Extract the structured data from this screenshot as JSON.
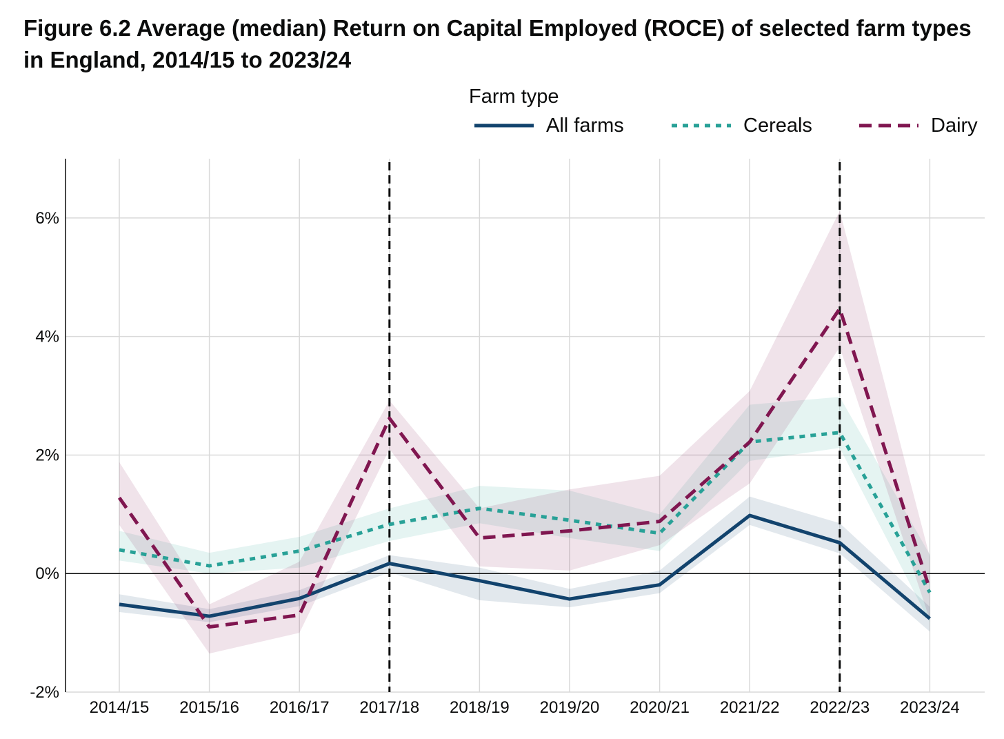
{
  "chart_data": {
    "type": "line",
    "title": "Figure 6.2 Average (median) Return on Capital Employed (ROCE) of selected farm types in England, 2014/15 to 2023/24",
    "legend_title": "Farm type",
    "legend_position": "top-right",
    "grid": true,
    "categories": [
      "2014/15",
      "2015/16",
      "2016/17",
      "2017/18",
      "2018/19",
      "2019/20",
      "2020/21",
      "2021/22",
      "2022/23",
      "2023/24"
    ],
    "ylim": [
      -2,
      7
    ],
    "yticks": [
      -2,
      0,
      2,
      4,
      6
    ],
    "ytick_labels": [
      "-2%",
      "0%",
      "2%",
      "4%",
      "6%"
    ],
    "vertical_dashed_markers": [
      "2017/18",
      "2022/23"
    ],
    "series": [
      {
        "name": "All farms",
        "color": "#12436d",
        "style": "solid",
        "values": [
          -0.52,
          -0.72,
          -0.42,
          0.17,
          -0.12,
          -0.43,
          -0.19,
          0.98,
          0.52,
          -0.76
        ],
        "ci_lower": [
          -0.65,
          -0.82,
          -0.55,
          0.02,
          -0.45,
          -0.57,
          -0.33,
          0.82,
          0.34,
          -0.98
        ],
        "ci_upper": [
          -0.35,
          -0.6,
          -0.28,
          0.31,
          0.1,
          -0.26,
          0.05,
          1.3,
          0.85,
          -0.56
        ]
      },
      {
        "name": "Cereals",
        "color": "#28a197",
        "style": "dotted",
        "values": [
          0.4,
          0.13,
          0.38,
          0.83,
          1.1,
          0.9,
          0.68,
          2.22,
          2.38,
          -0.32
        ],
        "ci_lower": [
          0.22,
          0.0,
          0.1,
          0.55,
          0.85,
          0.6,
          0.38,
          1.9,
          2.12,
          -0.82
        ],
        "ci_upper": [
          0.72,
          0.35,
          0.62,
          1.1,
          1.48,
          1.4,
          1.0,
          2.85,
          2.98,
          0.32
        ]
      },
      {
        "name": "Dairy",
        "color": "#801650",
        "style": "dashed",
        "values": [
          1.28,
          -0.9,
          -0.7,
          2.62,
          0.6,
          0.72,
          0.88,
          2.22,
          4.47,
          -0.27
        ],
        "ci_lower": [
          0.82,
          -1.35,
          -1.0,
          2.1,
          0.12,
          0.05,
          0.48,
          1.52,
          3.82,
          -0.78
        ],
        "ci_upper": [
          1.88,
          -0.52,
          0.2,
          2.92,
          1.1,
          1.42,
          1.65,
          3.08,
          6.12,
          0.28
        ]
      }
    ]
  }
}
